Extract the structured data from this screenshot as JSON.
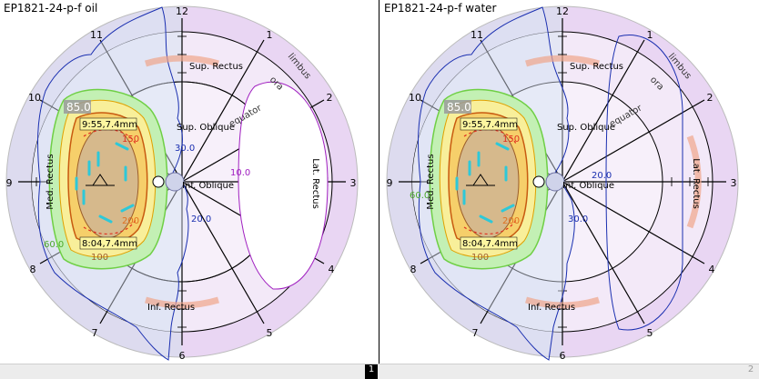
{
  "panels": [
    {
      "title": "EP1821-24-p-f oil",
      "clock_labels": [
        "12",
        "1",
        "2",
        "3",
        "4",
        "5",
        "6",
        "7",
        "8",
        "9",
        "10",
        "11"
      ],
      "muscles": {
        "sup_rectus": "Sup. Rectus",
        "sup_oblique": "Sup. Oblique",
        "inf_oblique": "Inf. Oblique",
        "inf_rectus": "Inf. Rectus",
        "lat_rectus": "Lat. Rectus",
        "med_rectus": "Med. Rectus"
      },
      "landmarks": {
        "limbus": "limbus",
        "ora": "ora",
        "equator": "equator"
      },
      "contours": {
        "a": "85.0",
        "b": "30.0",
        "c": "10.0",
        "d": "20.0",
        "e": "60.0",
        "f": "150",
        "g": "200",
        "h": "100"
      },
      "markers": {
        "top": "9:55,7.4mm",
        "bottom": "8:04,7.4mm"
      }
    },
    {
      "title": "EP1821-24-p-f water",
      "clock_labels": [
        "12",
        "1",
        "2",
        "3",
        "4",
        "5",
        "6",
        "7",
        "8",
        "9",
        "10",
        "11"
      ],
      "muscles": {
        "sup_rectus": "Sup. Rectus",
        "sup_oblique": "Sup. Oblique",
        "inf_oblique": "Inf. Oblique",
        "inf_rectus": "Inf. Rectus",
        "lat_rectus": "Lat. Rectus",
        "med_rectus": "Med. Rectus"
      },
      "landmarks": {
        "limbus": "limbus",
        "ora": "ora",
        "equator": "equator"
      },
      "contours": {
        "a": "85.0",
        "b": "20.0",
        "c": "30.0",
        "d": "60.0",
        "e": "150",
        "f": "200",
        "g": "100"
      },
      "markers": {
        "top": "9:55,7.4mm",
        "bottom": "8:04,7.4mm"
      }
    }
  ],
  "pagination": {
    "page1": "1",
    "page2": "2"
  }
}
